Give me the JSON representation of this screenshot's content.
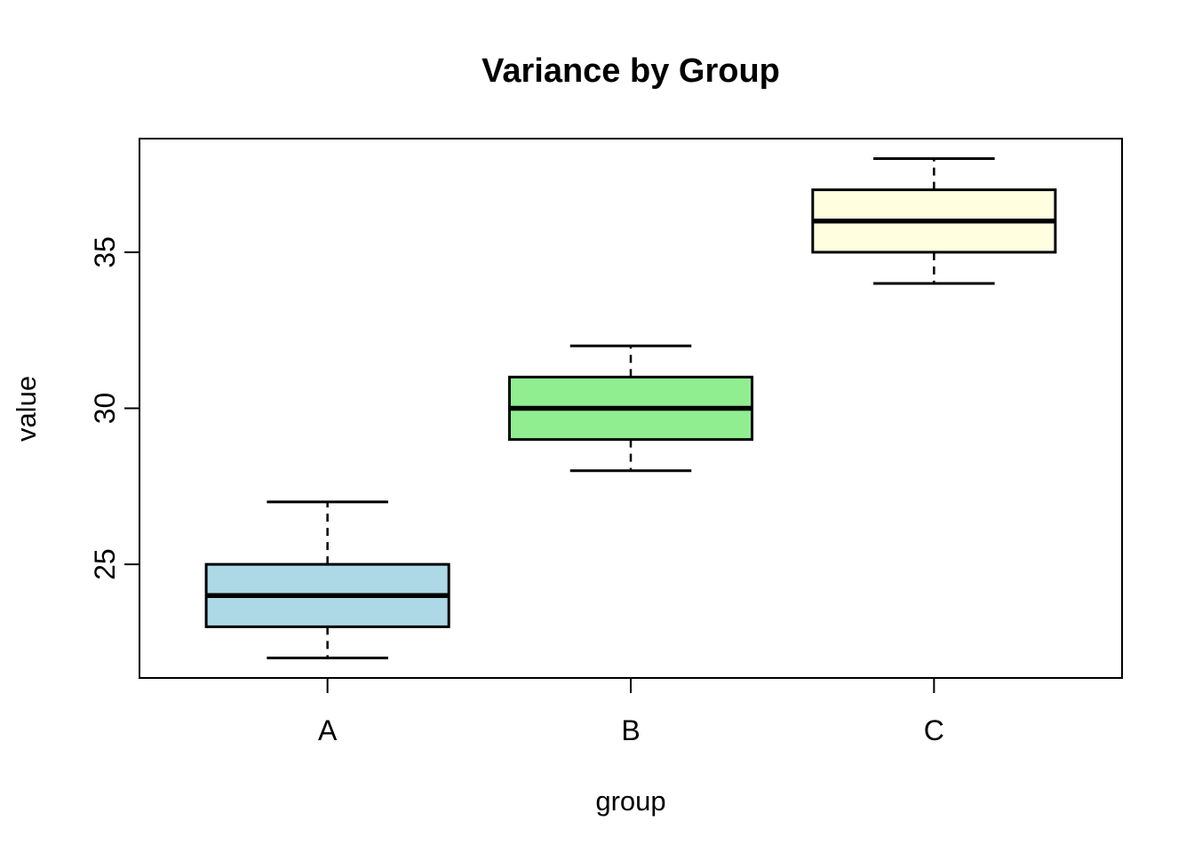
{
  "chart_data": {
    "type": "boxplot",
    "title": "Variance by Group",
    "xlabel": "group",
    "ylabel": "value",
    "categories": [
      "A",
      "B",
      "C"
    ],
    "series": [
      {
        "name": "A",
        "min": 22,
        "q1": 23,
        "median": 24,
        "q3": 25,
        "max": 27,
        "fill": "#ADD8E6"
      },
      {
        "name": "B",
        "min": 28,
        "q1": 29,
        "median": 30,
        "q3": 31,
        "max": 32,
        "fill": "#90EE90"
      },
      {
        "name": "C",
        "min": 34,
        "q1": 35,
        "median": 36,
        "q3": 37,
        "max": 38,
        "fill": "#FFFFE0"
      }
    ],
    "y_ticks": [
      25,
      30,
      35
    ],
    "ylim": [
      21.36,
      38.64
    ],
    "grid": false,
    "legend": "none",
    "background_color": "#FFFFFF",
    "frame_color": "#000000",
    "median_color": "#000000",
    "whisker_style": "dashed"
  }
}
